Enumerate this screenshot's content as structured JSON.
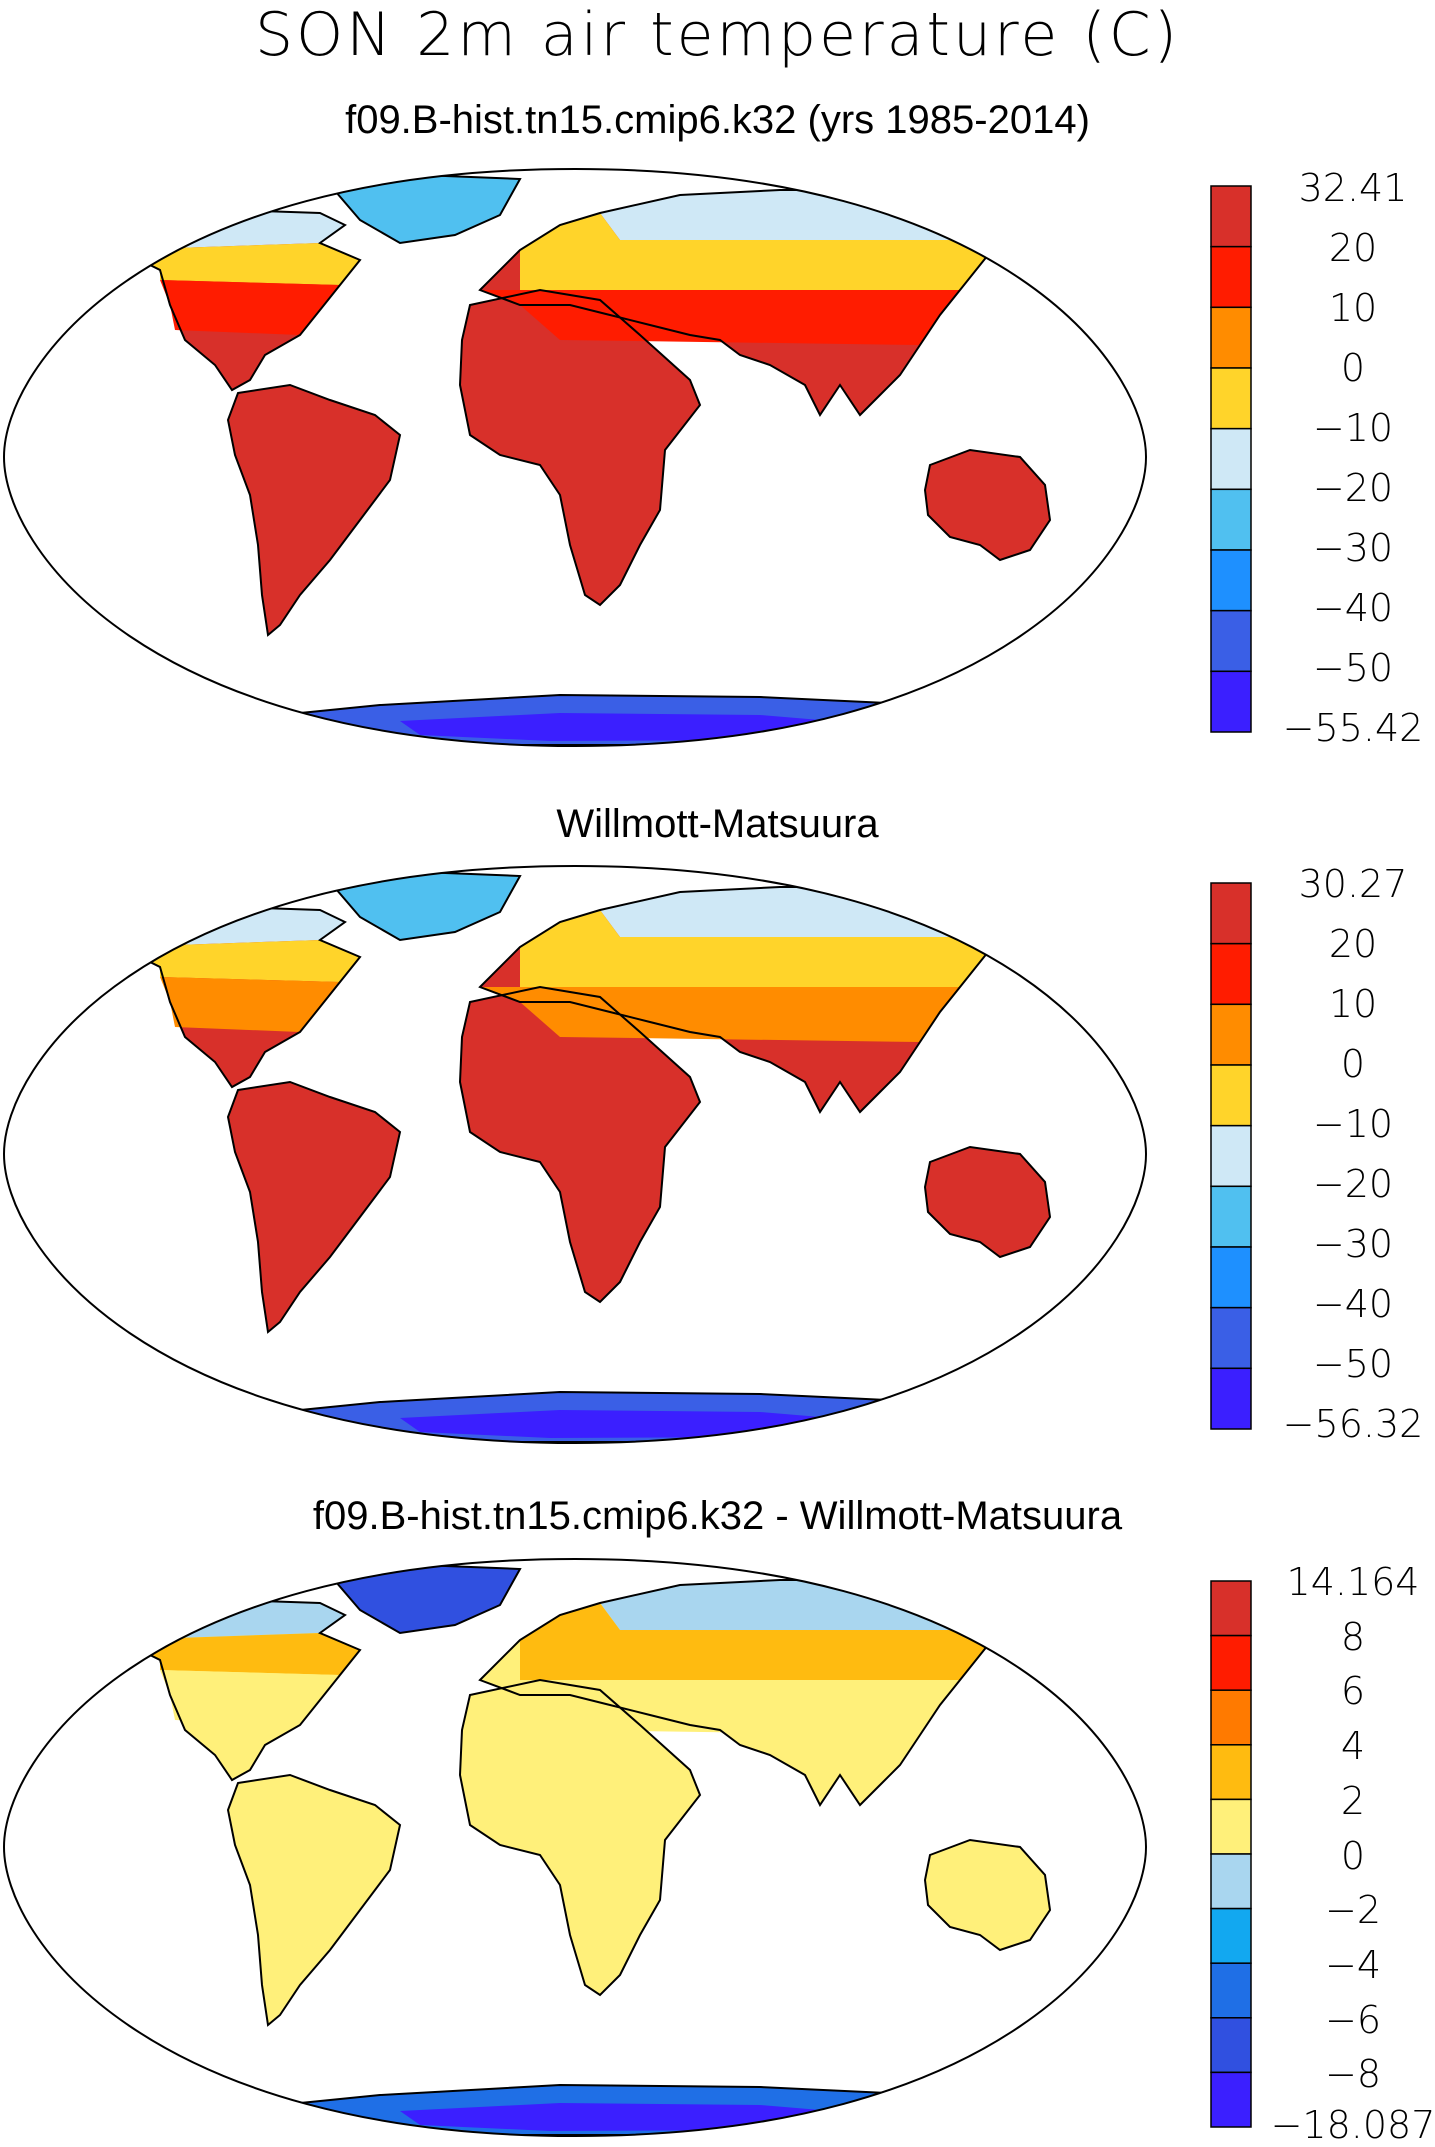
{
  "figure": {
    "title": "SON 2m air temperature (C)"
  },
  "colors": {
    "panel_scale": [
      "#3b1fff",
      "#3a5fe6",
      "#1e90ff",
      "#50c0f0",
      "#cfe8f6",
      "#ffd42a",
      "#ff8c00",
      "#ff1c00",
      "#d8302a"
    ],
    "diff_scale": [
      "#3b1fff",
      "#3050e0",
      "#1f6fe6",
      "#12a8f0",
      "#a9d6ef",
      "#fff07a",
      "#ffbb10",
      "#ff7a00",
      "#ff1c00",
      "#d8302a"
    ]
  },
  "panels": [
    {
      "title": "f09.B-hist.tn15.cmip6.k32 (yrs 1985-2014)",
      "colorbar": [
        "32.41",
        "20",
        "10",
        "0",
        "−10",
        "−20",
        "−30",
        "−40",
        "−50",
        "−55.42"
      ],
      "scale": "panel_scale",
      "fields": {
        "tropics": 8,
        "midlat": 7,
        "highlat": 5,
        "arctic": 4,
        "greenland": 3,
        "antarctica": 1,
        "antarctica_deep": 0
      }
    },
    {
      "title": "Willmott-Matsuura",
      "colorbar": [
        "30.27",
        "20",
        "10",
        "0",
        "−10",
        "−20",
        "−30",
        "−40",
        "−50",
        "−56.32"
      ],
      "scale": "panel_scale",
      "fields": {
        "tropics": 8,
        "midlat": 6,
        "highlat": 5,
        "arctic": 4,
        "greenland": 3,
        "antarctica": 1,
        "antarctica_deep": 0
      }
    },
    {
      "title": "f09.B-hist.tn15.cmip6.k32 - Willmott-Matsuura",
      "colorbar": [
        "14.164",
        "8",
        "6",
        "4",
        "2",
        "0",
        "−2",
        "−4",
        "−6",
        "−8",
        "−18.087"
      ],
      "scale": "diff_scale",
      "fields": {
        "tropics": 5,
        "midlat": 5,
        "highlat": 6,
        "arctic": 4,
        "greenland": 1,
        "antarctica": 2,
        "antarctica_deep": 0
      }
    }
  ]
}
